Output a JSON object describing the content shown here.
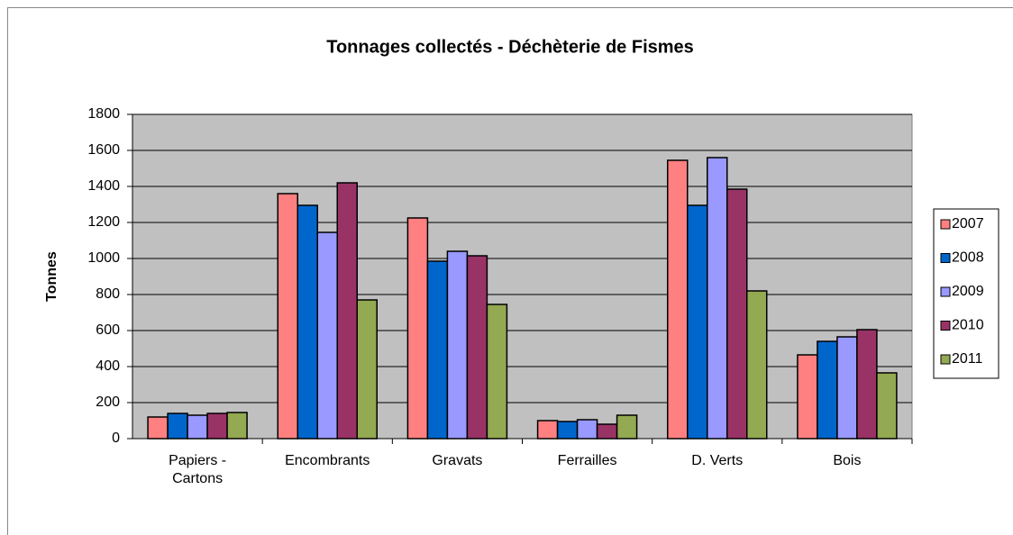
{
  "chart_data": {
    "type": "bar",
    "title": "Tonnages collectés - Déchèterie de Fismes",
    "y_label": "Tonnes",
    "categories": [
      "Papiers - Cartons",
      "Encombrants",
      "Gravats",
      "Ferrailles",
      "D. Verts",
      "Bois"
    ],
    "series": [
      {
        "name": "2007",
        "color": "#ff8080",
        "values": [
          120,
          1360,
          1225,
          100,
          1545,
          465
        ]
      },
      {
        "name": "2008",
        "color": "#0066cc",
        "values": [
          140,
          1295,
          985,
          95,
          1295,
          540
        ]
      },
      {
        "name": "2009",
        "color": "#9999ff",
        "values": [
          130,
          1145,
          1040,
          105,
          1560,
          565
        ]
      },
      {
        "name": "2010",
        "color": "#993366",
        "values": [
          140,
          1420,
          1015,
          80,
          1385,
          605
        ]
      },
      {
        "name": "2011",
        "color": "#93a952",
        "values": [
          145,
          770,
          745,
          130,
          820,
          365
        ]
      }
    ],
    "ylim": [
      0,
      1800
    ],
    "yticks": [
      0,
      200,
      400,
      600,
      800,
      1000,
      1200,
      1400,
      1600,
      1800
    ],
    "grid": true,
    "legend": "right"
  }
}
